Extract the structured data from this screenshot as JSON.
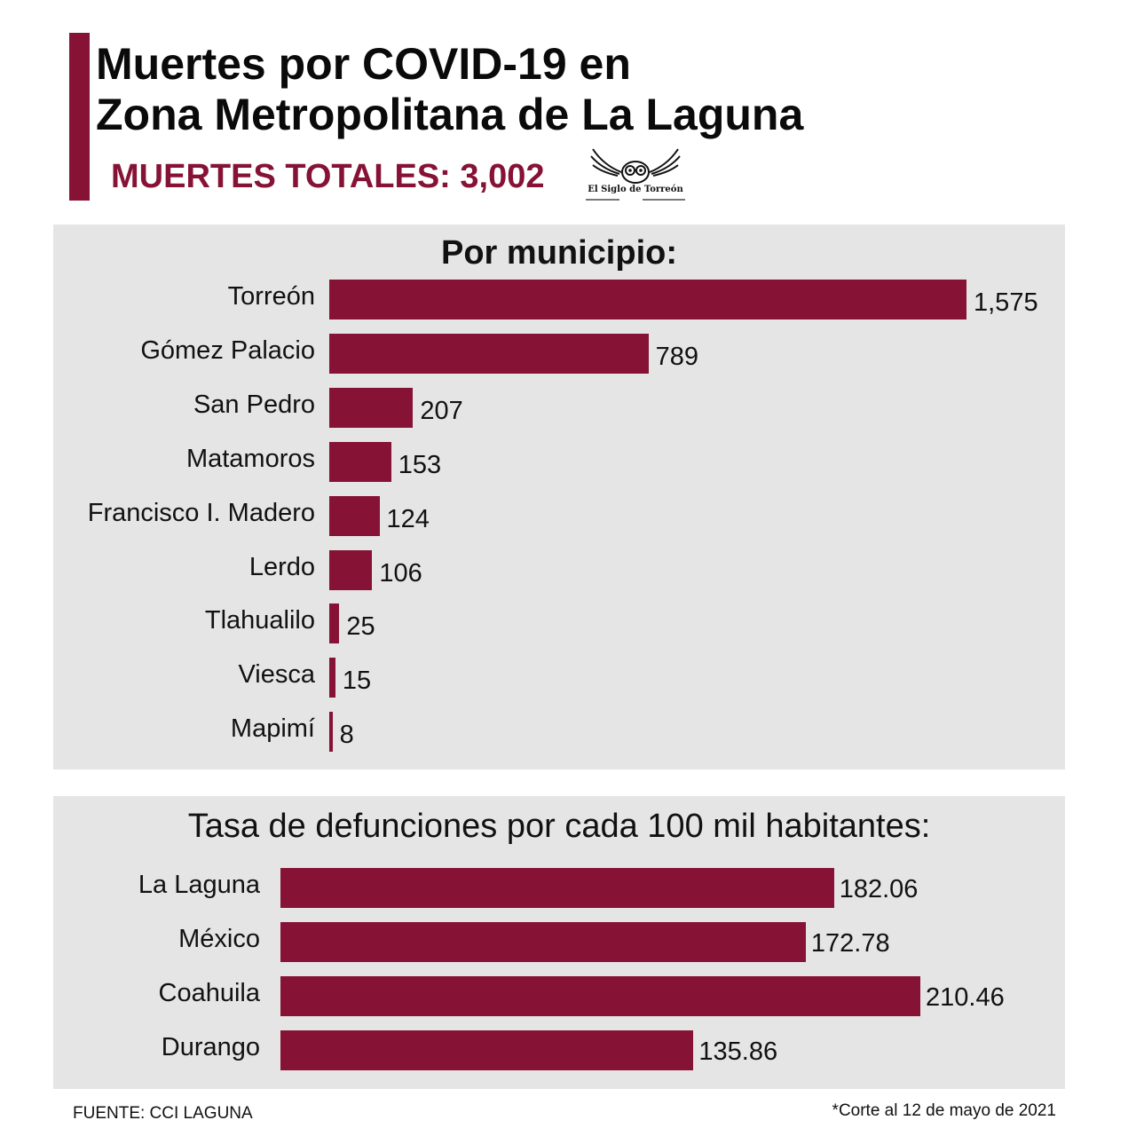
{
  "title_line1": "Muertes por COVID-19 en",
  "title_line2": "Zona Metropolitana de La Laguna",
  "total_label": "MUERTES TOTALES: 3,002",
  "logo": {
    "name": "El Siglo de Torreón"
  },
  "source": "FUENTE: CCI LAGUNA",
  "cutoff_note": "*Corte al 12 de mayo de 2021",
  "colors": {
    "accent": "#861236",
    "panel_bg": "#e5e5e5"
  },
  "chart_data": [
    {
      "type": "bar",
      "orientation": "horizontal",
      "title": "Por municipio:",
      "categories": [
        "Torreón",
        "Gómez Palacio",
        "San Pedro",
        "Matamoros",
        "Francisco I. Madero",
        "Lerdo",
        "Tlahualilo",
        "Viesca",
        "Mapimí"
      ],
      "values": [
        1575,
        789,
        207,
        153,
        124,
        106,
        25,
        15,
        8
      ],
      "value_labels": [
        "1,575",
        "789",
        "207",
        "153",
        "124",
        "106",
        "25",
        "15",
        "8"
      ],
      "xlim": [
        0,
        1575
      ],
      "grid": false
    },
    {
      "type": "bar",
      "orientation": "horizontal",
      "title": "Tasa de defunciones por cada 100 mil habitantes:",
      "categories": [
        "La Laguna",
        "México",
        "Coahuila",
        "Durango"
      ],
      "values": [
        182.06,
        172.78,
        210.46,
        135.86
      ],
      "value_labels": [
        "182.06",
        "172.78",
        "210.46",
        "135.86"
      ],
      "xlim": [
        0,
        210.46
      ],
      "grid": false
    }
  ]
}
